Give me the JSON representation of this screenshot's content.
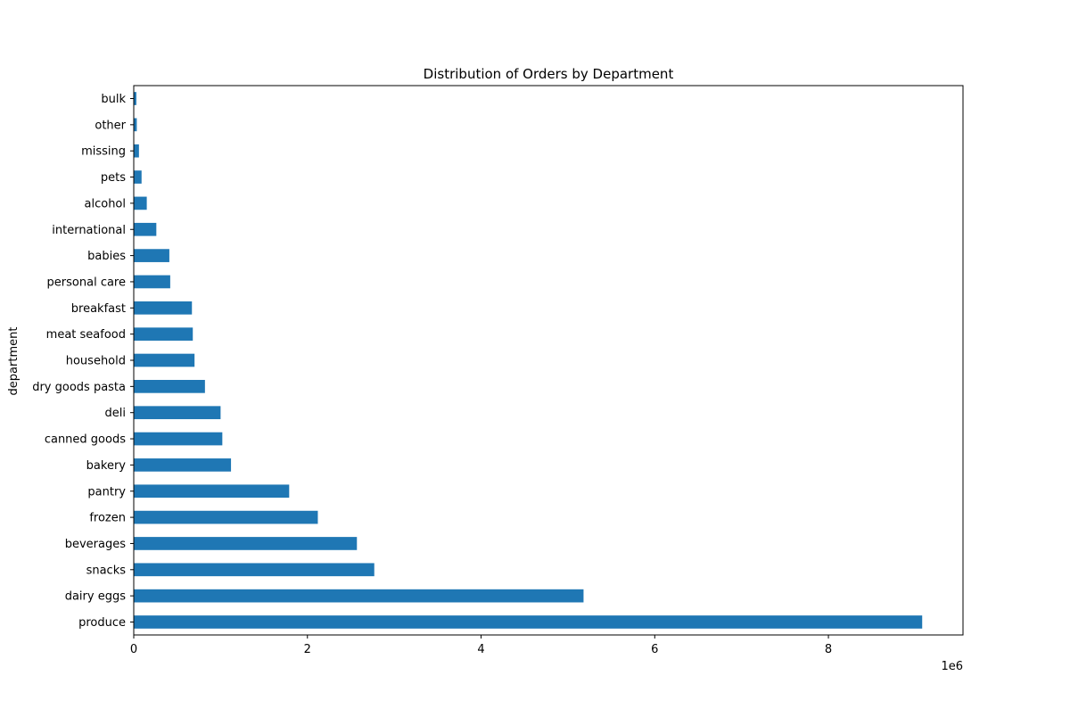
{
  "chart_data": {
    "type": "bar",
    "orientation": "horizontal",
    "title": "Distribution of Orders by Department",
    "xlabel": "",
    "ylabel": "department",
    "x_scale_label": "1e6",
    "xlim": [
      0,
      9.55
    ],
    "x_ticks": [
      0,
      2,
      4,
      6,
      8
    ],
    "grid": false,
    "legend": "none",
    "bar_color": "#1f77b4",
    "categories": [
      "produce",
      "dairy eggs",
      "snacks",
      "beverages",
      "frozen",
      "pantry",
      "bakery",
      "canned goods",
      "deli",
      "dry goods pasta",
      "household",
      "meat seafood",
      "breakfast",
      "personal care",
      "babies",
      "international",
      "alcohol",
      "pets",
      "missing",
      "other",
      "bulk"
    ],
    "values": [
      9.08,
      5.18,
      2.77,
      2.57,
      2.12,
      1.79,
      1.12,
      1.02,
      1.0,
      0.82,
      0.7,
      0.68,
      0.67,
      0.42,
      0.41,
      0.26,
      0.15,
      0.09,
      0.06,
      0.035,
      0.03
    ]
  }
}
